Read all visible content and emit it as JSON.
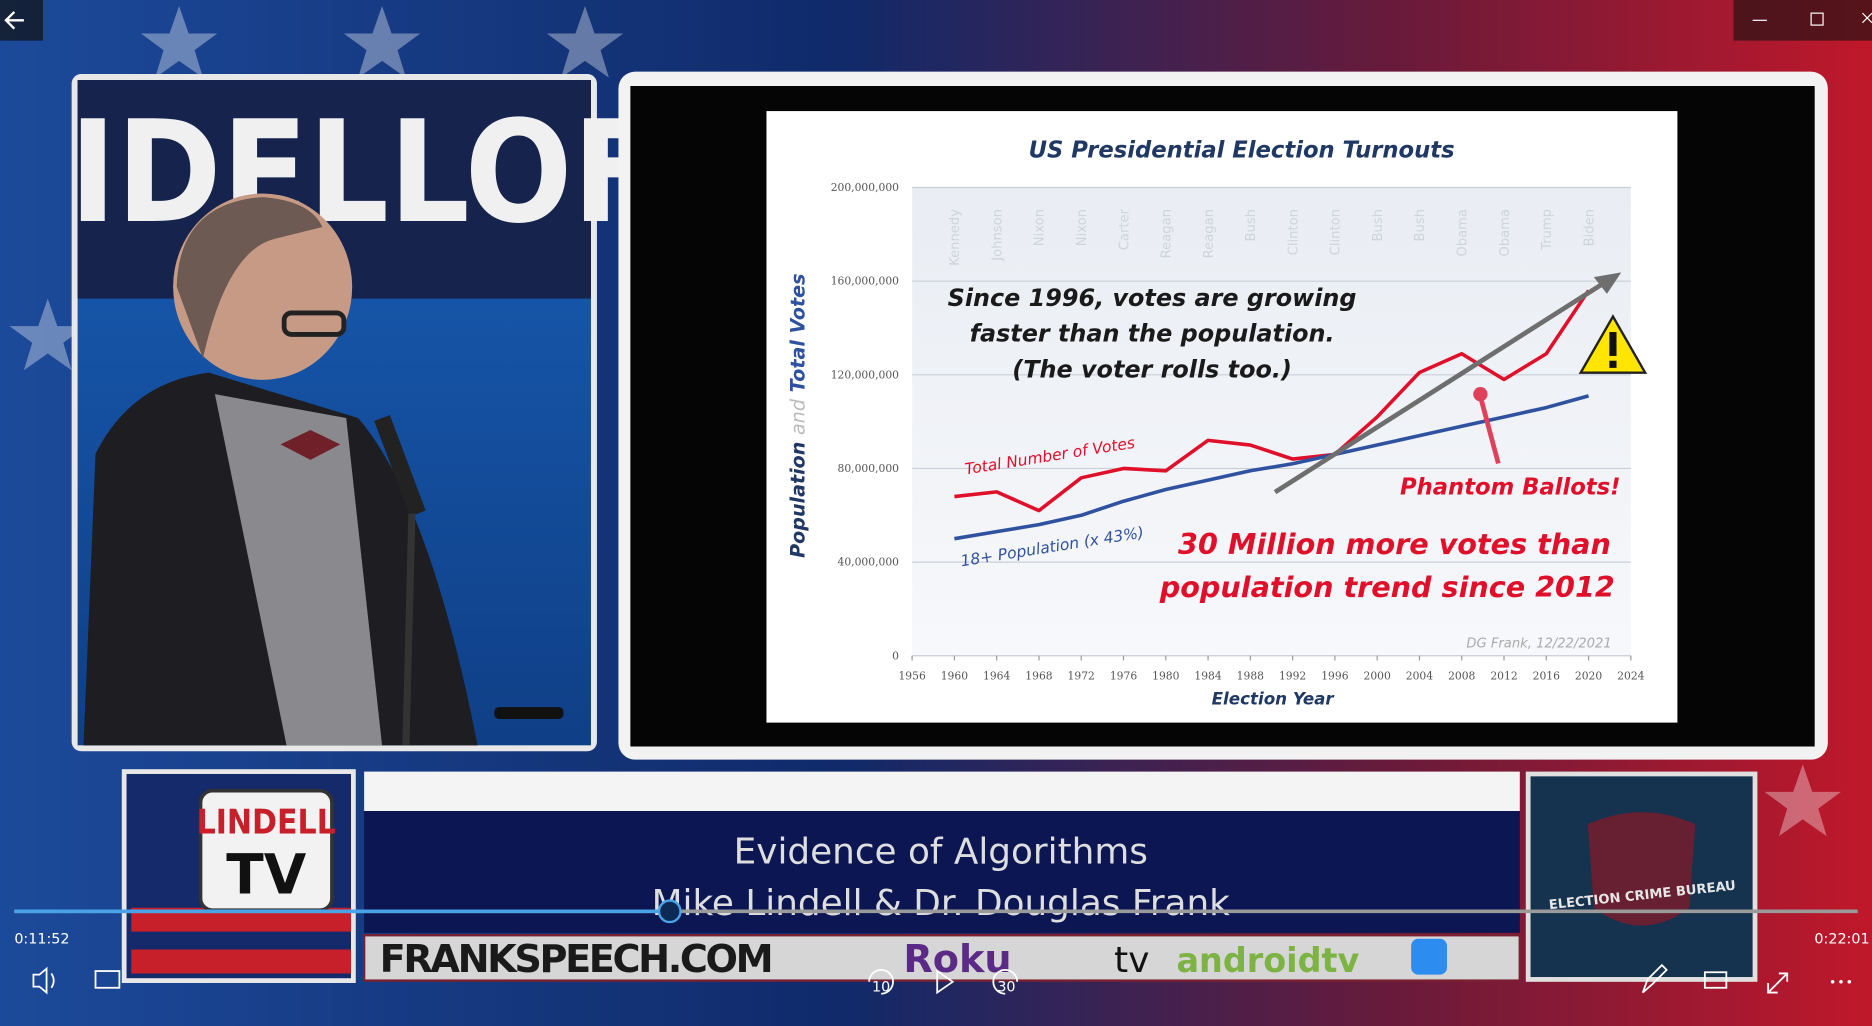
{
  "stage": {
    "backdrop_text": "IDELLOF"
  },
  "slide": {
    "chart": {
      "type": "line",
      "title": "US Presidential Election Turnouts",
      "xlabel": "Election Year",
      "ylabel_parts": [
        "Population",
        "and",
        "Total Votes"
      ],
      "x": [
        1960,
        1964,
        1968,
        1972,
        1976,
        1980,
        1984,
        1988,
        1992,
        1996,
        2000,
        2004,
        2008,
        2012,
        2016,
        2020
      ],
      "series": [
        {
          "name": "Total Number of Votes",
          "color": "#e0102a",
          "values": [
            68000000,
            70000000,
            62000000,
            76000000,
            80000000,
            79000000,
            92000000,
            90000000,
            84000000,
            86000000,
            102000000,
            121000000,
            129000000,
            118000000,
            129000000,
            156000000
          ]
        },
        {
          "name": "18+ Population (x 43%)",
          "color": "#2f52a0",
          "values": [
            50000000,
            53000000,
            56000000,
            60000000,
            66000000,
            71000000,
            75000000,
            79000000,
            82000000,
            86000000,
            90000000,
            94000000,
            98000000,
            102000000,
            106000000,
            111000000
          ]
        }
      ],
      "xlim": [
        1956,
        2024
      ],
      "xticks": [
        1956,
        1960,
        1964,
        1968,
        1972,
        1976,
        1980,
        1984,
        1988,
        1992,
        1996,
        2000,
        2004,
        2008,
        2012,
        2016,
        2020,
        2024
      ],
      "ylim": [
        0,
        200000000
      ],
      "yticks": [
        0,
        {
          "value": 40000000,
          "label": "40,000,000"
        },
        {
          "value": 80000000,
          "label": "80,000,000"
        },
        {
          "value": 120000000,
          "label": "120,000,000"
        },
        {
          "value": 160000000,
          "label": "160,000,000"
        },
        {
          "value": 200000000,
          "label": "200,000,000"
        }
      ],
      "grid": true,
      "president_labels": [
        "Kennedy",
        "Johnson",
        "Nixon",
        "Nixon",
        "Carter",
        "Reagan",
        "Reagan",
        "Bush",
        "Clinton",
        "Clinton",
        "Bush",
        "Bush",
        "Obama",
        "Obama",
        "Trump",
        "Biden"
      ],
      "annotations": {
        "growth": [
          "Since 1996, votes are growing",
          "faster than the population.",
          "(The voter rolls too.)"
        ],
        "phantom": "Phantom Ballots!",
        "gap": [
          "30 Million more votes than",
          "population trend since 2012"
        ],
        "credit": "DG Frank, 12/22/2021"
      }
    }
  },
  "lower_third": {
    "logo_left": [
      "LINDELL",
      "TV"
    ],
    "title": "Evidence of Algorithms",
    "subtitle": "Mike Lindell & Dr. Douglas Frank",
    "site": "FRANKSPEECH.COM",
    "platforms": [
      "Roku",
      "tv",
      "androidtv"
    ],
    "logo_right": "ELECTION CRIME BUREAU"
  },
  "player": {
    "elapsed": "0:11:52",
    "total": "0:22:01",
    "rewind": "10",
    "forward": "30"
  }
}
